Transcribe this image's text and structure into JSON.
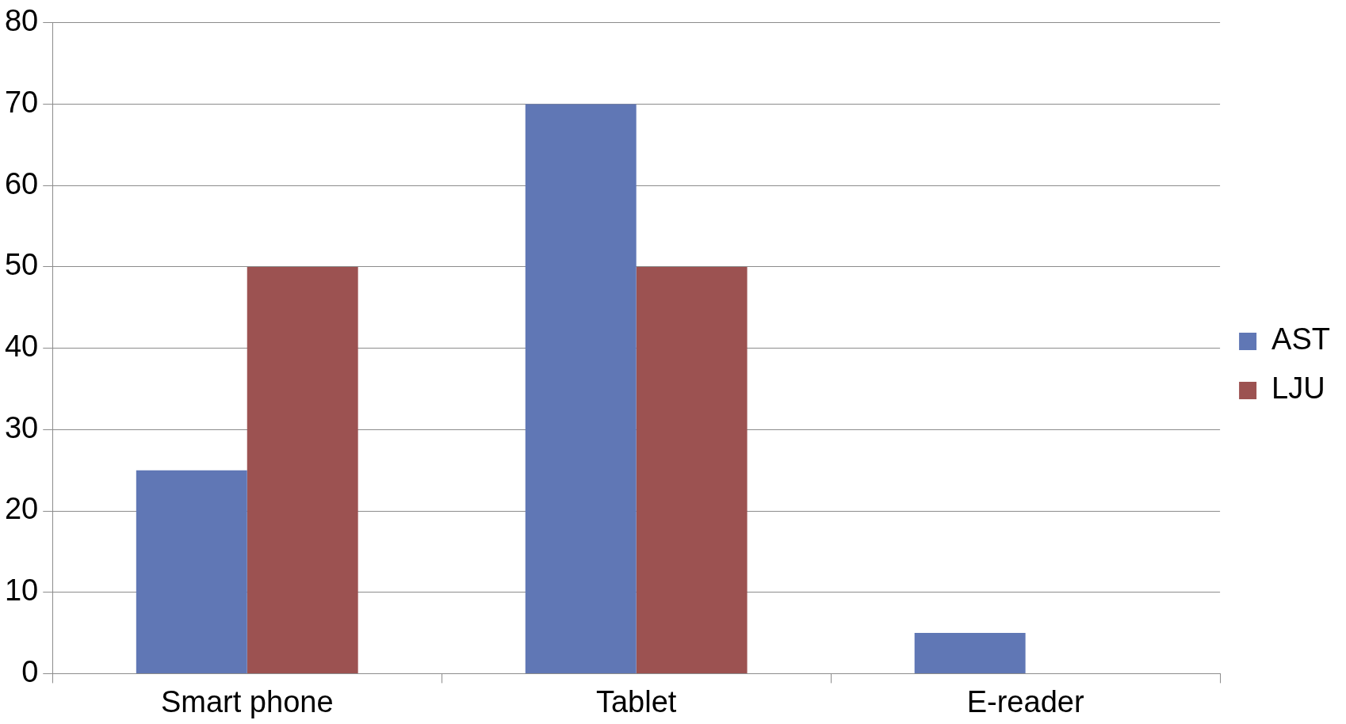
{
  "chart_data": {
    "type": "bar",
    "categories": [
      "Smart phone",
      "Tablet",
      "E-reader"
    ],
    "series": [
      {
        "name": "AST",
        "color": "#6077b5",
        "values": [
          25,
          70,
          5
        ]
      },
      {
        "name": "LJU",
        "color": "#9c5251",
        "values": [
          50,
          50,
          0
        ]
      }
    ],
    "ylim": [
      0,
      80
    ],
    "yticks": [
      0,
      10,
      20,
      30,
      40,
      50,
      60,
      70,
      80
    ],
    "grid": "y",
    "legend": "right"
  }
}
